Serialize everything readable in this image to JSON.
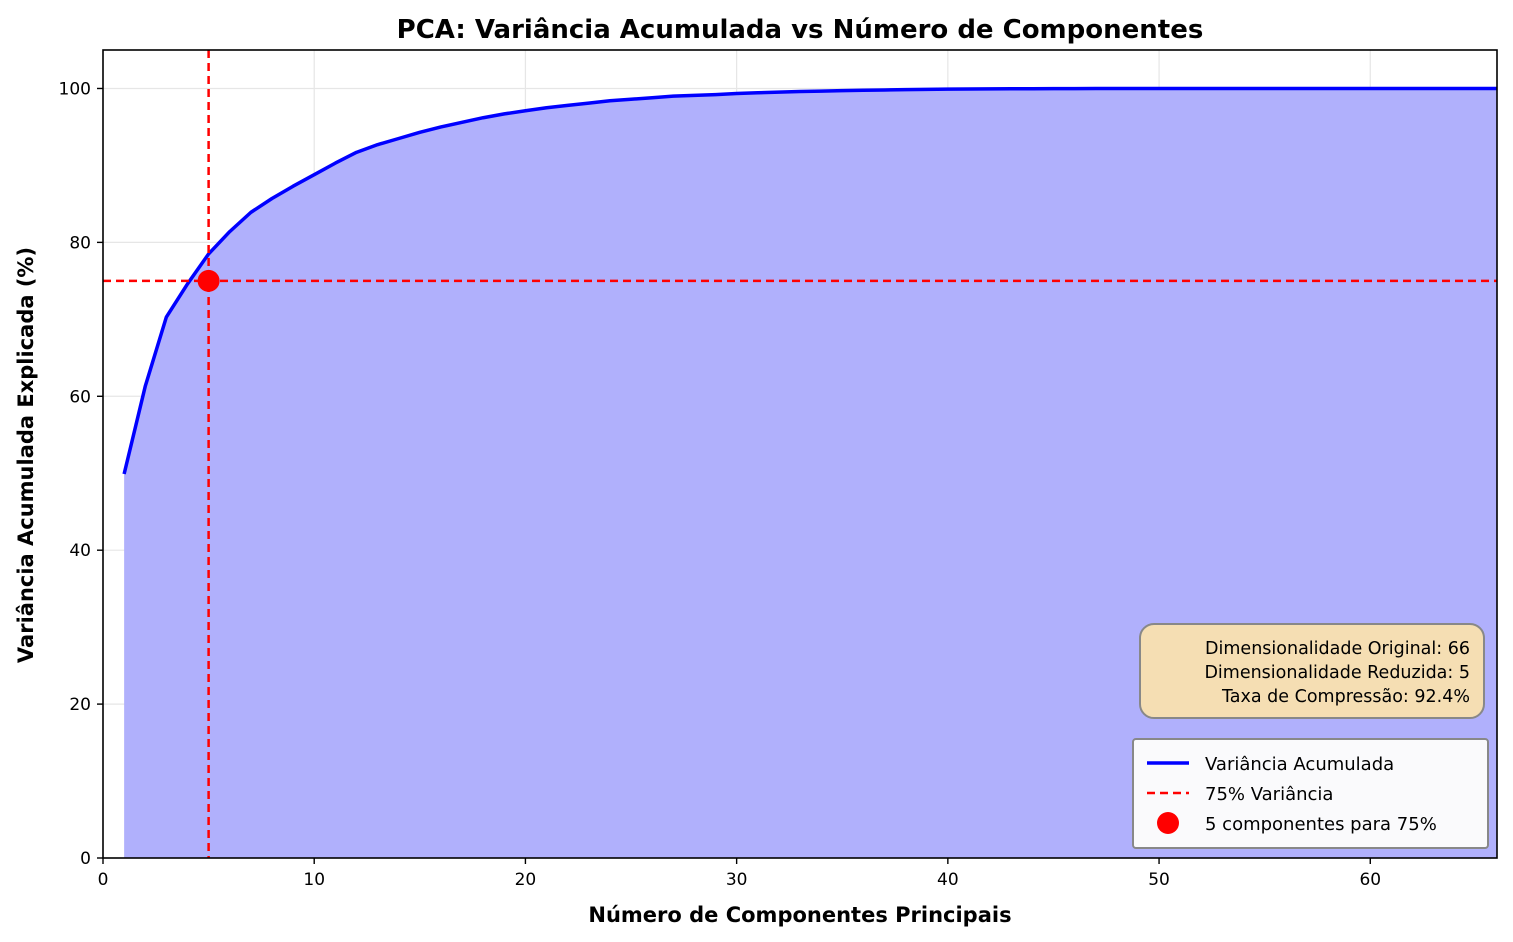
{
  "chart_data": {
    "type": "area",
    "title": "PCA: Variância Acumulada vs Número de Componentes",
    "xlabel": "Número de Componentes Principais",
    "ylabel": "Variância Acumulada Explicada (%)",
    "xlim": [
      0,
      66
    ],
    "ylim": [
      0,
      105
    ],
    "x_ticks": [
      0,
      10,
      20,
      30,
      40,
      50,
      60
    ],
    "y_ticks": [
      0,
      20,
      40,
      60,
      80,
      100
    ],
    "grid": true,
    "legend_position": "lower right",
    "series": [
      {
        "name": "Variância Acumulada",
        "color": "#0000ff",
        "fill_color": "#b0b0fc",
        "x": [
          1,
          2,
          3,
          4,
          5,
          6,
          7,
          8,
          9,
          10,
          11,
          12,
          13,
          14,
          15,
          16,
          17,
          18,
          19,
          20,
          21,
          22,
          23,
          24,
          25,
          26,
          27,
          28,
          29,
          30,
          31,
          32,
          33,
          34,
          35,
          36,
          37,
          38,
          39,
          40,
          41,
          42,
          43,
          44,
          45,
          46,
          47,
          48,
          49,
          50,
          51,
          52,
          53,
          54,
          55,
          56,
          57,
          58,
          59,
          60,
          61,
          62,
          63,
          64,
          65,
          66
        ],
        "y": [
          49.9,
          61.3,
          70.3,
          74.6,
          78.5,
          81.4,
          83.9,
          85.7,
          87.3,
          88.8,
          90.3,
          91.7,
          92.7,
          93.5,
          94.3,
          95.0,
          95.6,
          96.2,
          96.7,
          97.1,
          97.5,
          97.8,
          98.1,
          98.4,
          98.6,
          98.8,
          99.0,
          99.1,
          99.2,
          99.35,
          99.45,
          99.52,
          99.6,
          99.66,
          99.72,
          99.77,
          99.81,
          99.85,
          99.88,
          99.91,
          99.93,
          99.95,
          99.96,
          99.97,
          99.98,
          99.985,
          99.99,
          99.993,
          99.995,
          99.997,
          99.998,
          99.999,
          100,
          100,
          100,
          100,
          100,
          100,
          100,
          100,
          100,
          100,
          100,
          100,
          100,
          100
        ]
      }
    ],
    "threshold": {
      "name": "75% Variância",
      "y": 75,
      "x": 5,
      "color": "#ff0000"
    },
    "marker": {
      "name": "5 componentes para 75%",
      "x": 5,
      "y": 75,
      "color": "#ff0000"
    },
    "info_box": {
      "lines": [
        "Dimensionalidade Original: 66",
        "Dimensionalidade Reduzida: 5",
        "Taxa de Compressão: 92.4%"
      ],
      "background": "#f5deb3"
    },
    "legend": [
      "Variância Acumulada",
      "75% Variância",
      "5 componentes para 75%"
    ]
  }
}
